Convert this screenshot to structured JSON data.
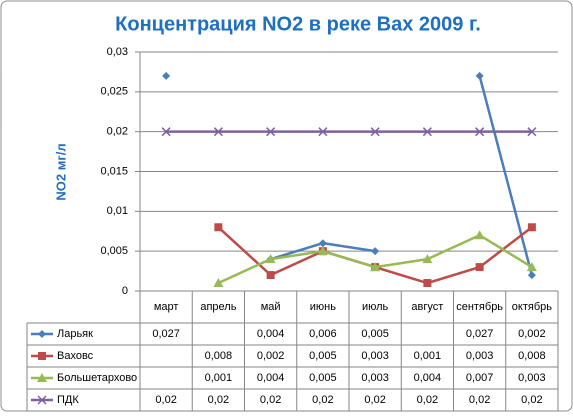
{
  "chart_data": {
    "type": "line",
    "title": "Концентрация NO2 в реке Вах 2009 г.",
    "y_label": "NO2 мг/л",
    "categories": [
      "март",
      "апрель",
      "май",
      "июнь",
      "июль",
      "август",
      "сентябрь",
      "октябрь"
    ],
    "ylim": [
      0,
      0.03
    ],
    "yticks": [
      0,
      {
        "value": 0.005,
        "label": "0,005"
      },
      {
        "value": 0.01,
        "label": "0,01"
      },
      {
        "value": 0.015,
        "label": "0,015"
      },
      {
        "value": 0.02,
        "label": "0,02"
      },
      {
        "value": 0.025,
        "label": "0,025"
      },
      {
        "value": 0.03,
        "label": "0,03"
      }
    ],
    "grid": true,
    "data_table": true,
    "series": [
      {
        "name": "Ларьяк",
        "color": "#4a7ebb",
        "marker": "diamond",
        "values": [
          0.027,
          null,
          0.004,
          0.006,
          0.005,
          null,
          0.027,
          0.002
        ],
        "value_labels": [
          "0,027",
          null,
          "0,004",
          "0,006",
          "0,005",
          null,
          "0,027",
          "0,002"
        ]
      },
      {
        "name": "Ваховс",
        "color": "#be4b48",
        "marker": "square",
        "values": [
          null,
          0.008,
          0.002,
          0.005,
          0.003,
          0.001,
          0.003,
          0.008
        ],
        "value_labels": [
          null,
          "0,008",
          "0,002",
          "0,005",
          "0,003",
          "0,001",
          "0,003",
          "0,008"
        ]
      },
      {
        "name": "Большетархово",
        "color": "#98b954",
        "marker": "triangle",
        "values": [
          null,
          0.001,
          0.004,
          0.005,
          0.003,
          0.004,
          0.007,
          0.003
        ],
        "value_labels": [
          null,
          "0,001",
          "0,004",
          "0,005",
          "0,003",
          "0,004",
          "0,007",
          "0,003"
        ]
      },
      {
        "name": "ПДК",
        "color": "#7d60a0",
        "marker": "x",
        "values": [
          0.02,
          0.02,
          0.02,
          0.02,
          0.02,
          0.02,
          0.02,
          0.02
        ],
        "value_labels": [
          "0,02",
          "0,02",
          "0,02",
          "0,02",
          "0,02",
          "0,02",
          "0,02",
          "0,02"
        ]
      }
    ]
  }
}
